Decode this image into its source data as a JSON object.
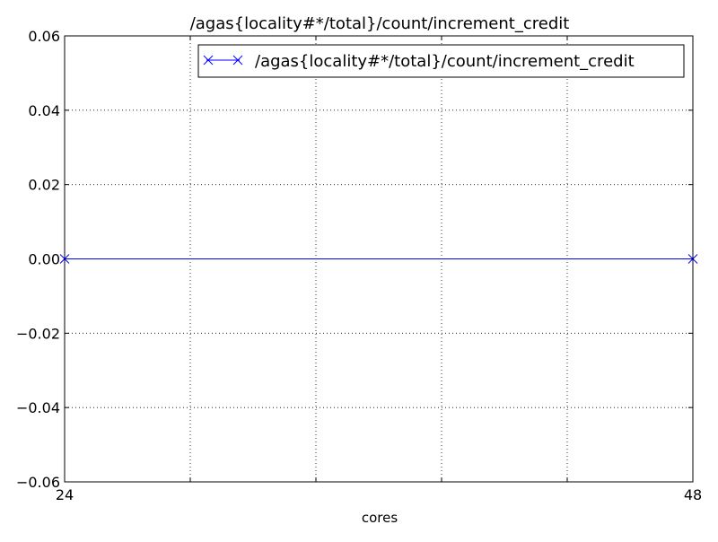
{
  "chart_data": {
    "type": "line",
    "title": "/agas{locality#*/total}/count/increment_credit",
    "xlabel": "cores",
    "ylabel": "",
    "xlim": [
      24,
      48
    ],
    "ylim": [
      -0.06,
      0.06
    ],
    "x_ticks": [
      24,
      48
    ],
    "x_tick_labels": [
      "24",
      "48"
    ],
    "x_grid": [
      24,
      28.8,
      33.6,
      38.4,
      43.2,
      48
    ],
    "y_ticks": [
      -0.06,
      -0.04,
      -0.02,
      0.0,
      0.02,
      0.04,
      0.06
    ],
    "y_tick_labels": [
      "−0.06",
      "−0.04",
      "−0.02",
      "0.00",
      "0.02",
      "0.04",
      "0.06"
    ],
    "grid": true,
    "grid_style": "dotted",
    "legend_position": "top-right",
    "series": [
      {
        "name": "/agas{locality#*/total}/count/increment_credit",
        "color": "#0000ff",
        "marker": "x",
        "x": [
          24,
          48
        ],
        "y": [
          0.0,
          0.0
        ]
      }
    ]
  }
}
